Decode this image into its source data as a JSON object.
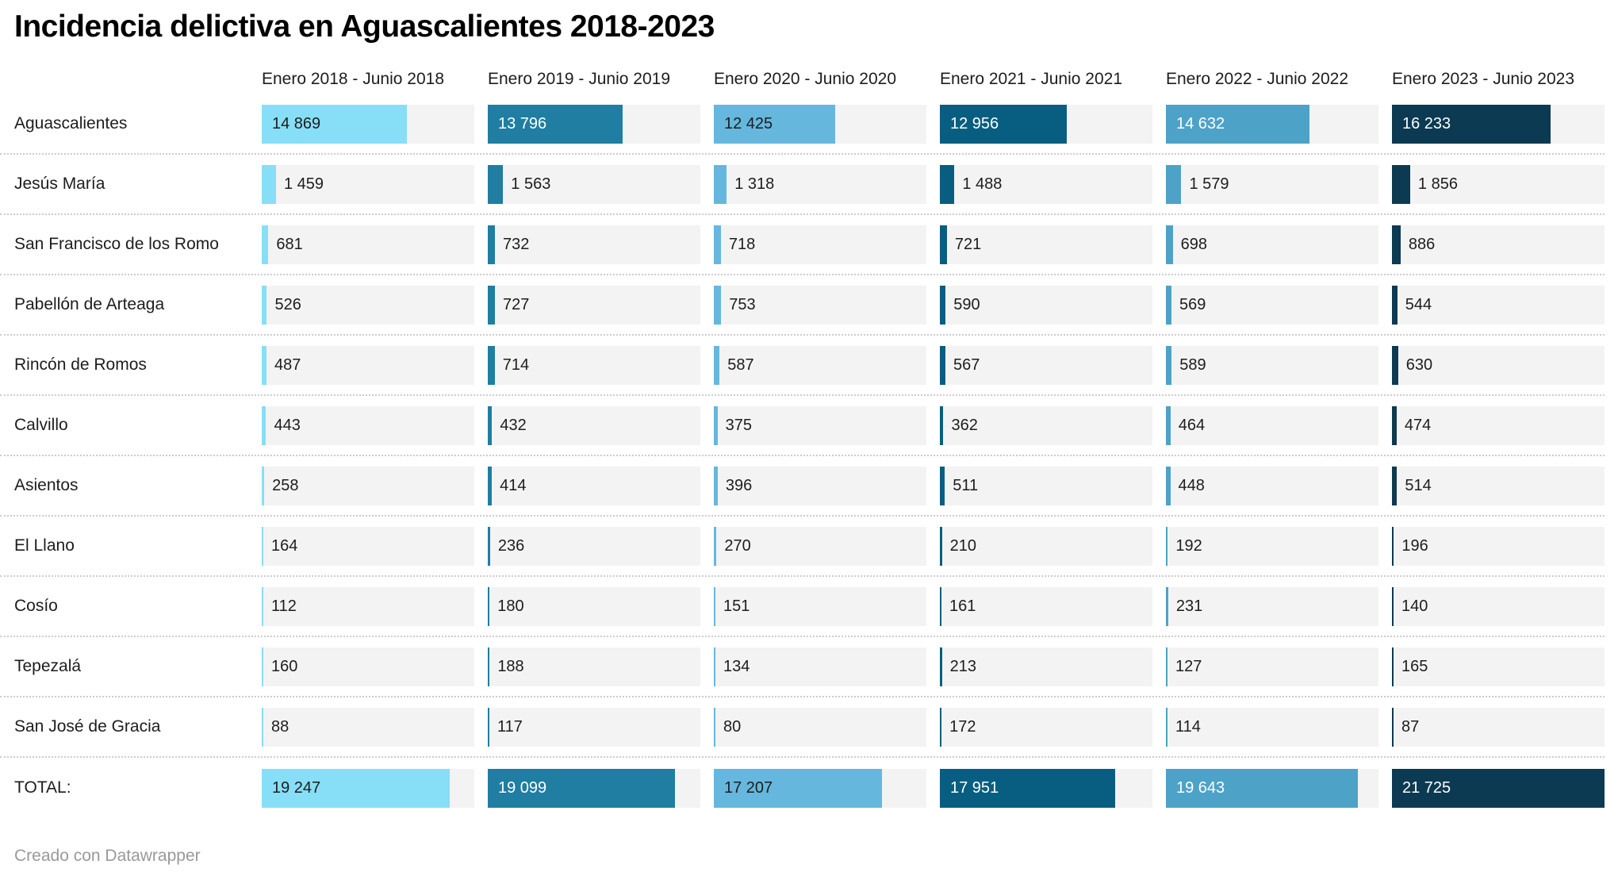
{
  "title": "Incidencia delictiva en Aguascalientes 2018-2023",
  "footer": {
    "credit": "Creado con Datawrapper"
  },
  "chart_data": {
    "type": "bar",
    "title": "Incidencia delictiva en Aguascalientes 2018-2023",
    "layout": {
      "orientation": "horizontal-small-multiples",
      "max_value": 21725,
      "inside_label_threshold": 5000,
      "cell_background": "#f3f3f3",
      "separator_color": "#cccccc",
      "value_format": "space-thousands"
    },
    "columns": [
      {
        "label": "Enero 2018 - Junio 2018",
        "color": "#87def7",
        "value_text_color": "#1d1d1d"
      },
      {
        "label": "Enero 2019 - Junio 2019",
        "color": "#1f7ea1",
        "value_text_color": "#ffffff"
      },
      {
        "label": "Enero 2020 - Junio 2020",
        "color": "#65b7de",
        "value_text_color": "#1d1d1d"
      },
      {
        "label": "Enero 2021 - Junio 2021",
        "color": "#085e80",
        "value_text_color": "#ffffff"
      },
      {
        "label": "Enero 2022 - Junio 2022",
        "color": "#4da2c7",
        "value_text_color": "#ffffff"
      },
      {
        "label": "Enero 2023 - Junio 2023",
        "color": "#0c3a52",
        "value_text_color": "#ffffff"
      }
    ],
    "rows": [
      {
        "label": "Aguascalientes",
        "values": [
          14869,
          13796,
          12425,
          12956,
          14632,
          16233
        ]
      },
      {
        "label": "Jesús María",
        "values": [
          1459,
          1563,
          1318,
          1488,
          1579,
          1856
        ]
      },
      {
        "label": "San Francisco de los Romo",
        "values": [
          681,
          732,
          718,
          721,
          698,
          886
        ]
      },
      {
        "label": "Pabellón de Arteaga",
        "values": [
          526,
          727,
          753,
          590,
          569,
          544
        ]
      },
      {
        "label": "Rincón de Romos",
        "values": [
          487,
          714,
          587,
          567,
          589,
          630
        ]
      },
      {
        "label": "Calvillo",
        "values": [
          443,
          432,
          375,
          362,
          464,
          474
        ]
      },
      {
        "label": "Asientos",
        "values": [
          258,
          414,
          396,
          511,
          448,
          514
        ]
      },
      {
        "label": "El Llano",
        "values": [
          164,
          236,
          270,
          210,
          192,
          196
        ]
      },
      {
        "label": "Cosío",
        "values": [
          112,
          180,
          151,
          161,
          231,
          140
        ]
      },
      {
        "label": "Tepezalá",
        "values": [
          160,
          188,
          134,
          213,
          127,
          165
        ]
      },
      {
        "label": "San José de Gracia",
        "values": [
          88,
          117,
          80,
          172,
          114,
          87
        ]
      },
      {
        "label": "TOTAL:",
        "values": [
          19247,
          19099,
          17207,
          17951,
          19643,
          21725
        ],
        "is_total": true
      }
    ]
  }
}
